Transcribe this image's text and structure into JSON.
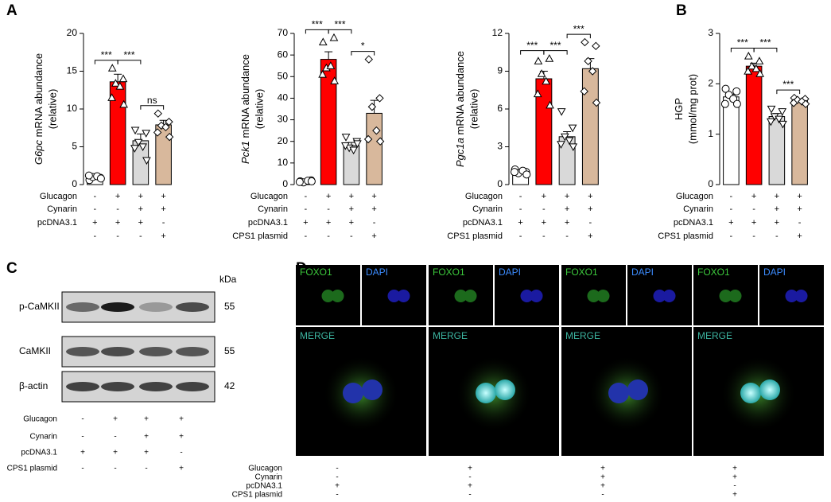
{
  "chart_data": [
    {
      "type": "bar",
      "panel": "A",
      "ylabel": [
        {
          "text": "G6pc",
          "italic": true
        },
        {
          "text": " mRNA abundance"
        }
      ],
      "ylabel2": "(relative)",
      "ylim": [
        0,
        20
      ],
      "yticks": [
        0,
        5,
        10,
        15,
        20
      ],
      "values": [
        1.0,
        13.6,
        5.8,
        7.9
      ],
      "errors": [
        0.2,
        1.0,
        0.9,
        0.6
      ],
      "points": [
        [
          0.6,
          0.9,
          1.0,
          1.1,
          1.2,
          0.8
        ],
        [
          15.4,
          14.0,
          13.4,
          13.0,
          11.5,
          10.6
        ],
        [
          7.2,
          6.8,
          5.6,
          5.0,
          4.8,
          3.2
        ],
        [
          9.4,
          8.3,
          7.8,
          7.6,
          6.9,
          6.3
        ]
      ],
      "colors": [
        "#ffffff",
        "#ff0000",
        "#d9d9d9",
        "#d8b89c"
      ],
      "markers": [
        "circle",
        "triangle",
        "triangle-down",
        "diamond"
      ],
      "significance": [
        {
          "from": 0,
          "to": 1,
          "label": "***"
        },
        {
          "from": 1,
          "to": 2,
          "label": "***"
        },
        {
          "from": 2,
          "to": 3,
          "label": "ns"
        }
      ],
      "conditions": [
        {
          "name": "Glucagon",
          "signs": [
            "-",
            "+",
            "+",
            "+"
          ]
        },
        {
          "name": "Cynarin",
          "signs": [
            "-",
            "-",
            "+",
            "+"
          ]
        },
        {
          "name": "pcDNA3.1",
          "signs": [
            "+",
            "+",
            "+",
            "-"
          ]
        },
        {
          "name": null,
          "signs": [
            "-",
            "-",
            "-",
            "+"
          ]
        }
      ]
    },
    {
      "type": "bar",
      "panel": null,
      "ylabel": [
        {
          "text": "Pck1",
          "italic": true
        },
        {
          "text": " mRNA abundance"
        }
      ],
      "ylabel2": "(relative)",
      "ylim": [
        0,
        70
      ],
      "yticks": [
        0,
        10,
        20,
        30,
        40,
        50,
        60,
        70
      ],
      "values": [
        1.5,
        58,
        18,
        33
      ],
      "errors": [
        0.5,
        3.5,
        1.5,
        6
      ],
      "points": [
        [
          1.5,
          2.0,
          1.0,
          1.8,
          1.2,
          1.5
        ],
        [
          66,
          68,
          54,
          55,
          51,
          48
        ],
        [
          22,
          20,
          17,
          16,
          18,
          19
        ],
        [
          58,
          40,
          36,
          25,
          21,
          20
        ]
      ],
      "colors": [
        "#ffffff",
        "#ff0000",
        "#d9d9d9",
        "#d8b89c"
      ],
      "markers": [
        "circle",
        "triangle",
        "triangle-down",
        "diamond"
      ],
      "significance": [
        {
          "from": 0,
          "to": 1,
          "label": "***"
        },
        {
          "from": 1,
          "to": 2,
          "label": "***"
        },
        {
          "from": 2,
          "to": 3,
          "label": "*"
        }
      ],
      "conditions": [
        {
          "name": "Glucagon",
          "signs": [
            "-",
            "+",
            "+",
            "+"
          ]
        },
        {
          "name": "Cynarin",
          "signs": [
            "-",
            "-",
            "+",
            "+"
          ]
        },
        {
          "name": "pcDNA3.1",
          "signs": [
            "+",
            "+",
            "+",
            "-"
          ]
        },
        {
          "name": "CPS1 plasmid",
          "signs": [
            "-",
            "-",
            "-",
            "+"
          ]
        }
      ]
    },
    {
      "type": "bar",
      "panel": null,
      "ylabel": [
        {
          "text": "Pgc1a",
          "italic": true
        },
        {
          "text": " mRNA abundance"
        }
      ],
      "ylabel2": "(relative)",
      "ylim": [
        0,
        12
      ],
      "yticks": [
        0,
        3,
        6,
        9,
        12
      ],
      "values": [
        1.0,
        8.4,
        3.8,
        9.2
      ],
      "errors": [
        0.15,
        0.6,
        0.4,
        0.8
      ],
      "points": [
        [
          1.2,
          1.0,
          0.9,
          1.1,
          1.0,
          0.8
        ],
        [
          9.8,
          10.0,
          8.8,
          8.2,
          7.2,
          6.3
        ],
        [
          5.8,
          4.5,
          3.8,
          3.5,
          3.2,
          3.0
        ],
        [
          11.3,
          11.0,
          9.8,
          9.0,
          7.4,
          6.5
        ]
      ],
      "colors": [
        "#ffffff",
        "#ff0000",
        "#d9d9d9",
        "#d8b89c"
      ],
      "markers": [
        "circle",
        "triangle",
        "triangle-down",
        "diamond"
      ],
      "significance": [
        {
          "from": 0,
          "to": 1,
          "label": "***"
        },
        {
          "from": 1,
          "to": 2,
          "label": "***"
        },
        {
          "from": 2,
          "to": 3,
          "label": "***"
        }
      ],
      "conditions": [
        {
          "name": "Glucagon",
          "signs": [
            "-",
            "+",
            "+",
            "+"
          ]
        },
        {
          "name": "Cynarin",
          "signs": [
            "-",
            "-",
            "+",
            "+"
          ]
        },
        {
          "name": "pcDNA3.1",
          "signs": [
            "+",
            "+",
            "+",
            "-"
          ]
        },
        {
          "name": "CPS1 plasmid",
          "signs": [
            "-",
            "-",
            "-",
            "+"
          ]
        }
      ]
    },
    {
      "type": "bar",
      "panel": "B",
      "ylabel": [
        {
          "text": "HGP"
        }
      ],
      "ylabel2": "(mmol/mg prot)",
      "ylim": [
        0,
        3
      ],
      "yticks": [
        0,
        1,
        2,
        3
      ],
      "values": [
        1.74,
        2.35,
        1.35,
        1.67
      ],
      "errors": [
        0.05,
        0.06,
        0.06,
        0.03
      ],
      "points": [
        [
          1.9,
          1.85,
          1.78,
          1.7,
          1.6,
          1.6
        ],
        [
          2.55,
          2.45,
          2.35,
          2.3,
          2.25,
          2.2
        ],
        [
          1.5,
          1.45,
          1.35,
          1.3,
          1.25,
          1.2
        ],
        [
          1.72,
          1.7,
          1.68,
          1.65,
          1.62,
          1.6
        ]
      ],
      "colors": [
        "#ffffff",
        "#ff0000",
        "#d9d9d9",
        "#d8b89c"
      ],
      "markers": [
        "circle",
        "triangle",
        "triangle-down",
        "diamond"
      ],
      "significance": [
        {
          "from": 0,
          "to": 1,
          "label": "***"
        },
        {
          "from": 1,
          "to": 2,
          "label": "***"
        },
        {
          "from": 2,
          "to": 3,
          "label": "***"
        }
      ],
      "conditions": [
        {
          "name": "Glucagon",
          "signs": [
            "-",
            "+",
            "+",
            "+"
          ]
        },
        {
          "name": "Cynarin",
          "signs": [
            "-",
            "-",
            "+",
            "+"
          ]
        },
        {
          "name": "pcDNA3.1",
          "signs": [
            "+",
            "+",
            "+",
            "-"
          ]
        },
        {
          "name": "CPS1 plasmid",
          "signs": [
            "-",
            "-",
            "-",
            "+"
          ]
        }
      ]
    }
  ],
  "blot": {
    "panel": "C",
    "unit": "kDa",
    "rows": [
      {
        "name": "p-CaMKII",
        "kda": "55"
      },
      {
        "name": "CaMKII",
        "kda": "55"
      },
      {
        "name": "β-actin",
        "kda": "42"
      }
    ],
    "conditions": [
      {
        "name": "Glucagon",
        "signs": [
          "-",
          "+",
          "+",
          "+"
        ]
      },
      {
        "name": "Cynarin",
        "signs": [
          "-",
          "-",
          "+",
          "+"
        ]
      },
      {
        "name": "pcDNA3.1",
        "signs": [
          "+",
          "+",
          "+",
          "-"
        ]
      },
      {
        "name": "CPS1 plasmid",
        "signs": [
          "-",
          "-",
          "-",
          "+"
        ]
      }
    ]
  },
  "imaging": {
    "panel": "D",
    "columns": [
      {
        "top": [
          "FOXO1",
          "DAPI"
        ],
        "merge": "MERGE"
      },
      {
        "top": [
          "FOXO1",
          "DAPI"
        ],
        "merge": "MERGE"
      },
      {
        "top": [
          "FOXO1",
          "DAPI"
        ],
        "merge": "MERGE"
      },
      {
        "top": [
          "FOXO1",
          "DAPI"
        ],
        "merge": "MERGE"
      }
    ],
    "conditions": [
      {
        "name": "Glucagon",
        "signs": [
          "-",
          "+",
          "+",
          "+"
        ]
      },
      {
        "name": "Cynarin",
        "signs": [
          "-",
          "-",
          "+",
          "+"
        ]
      },
      {
        "name": "pcDNA3.1",
        "signs": [
          "+",
          "+",
          "+",
          "-"
        ]
      },
      {
        "name": "CPS1 plasmid",
        "signs": [
          "-",
          "-",
          "-",
          "+"
        ]
      }
    ]
  }
}
